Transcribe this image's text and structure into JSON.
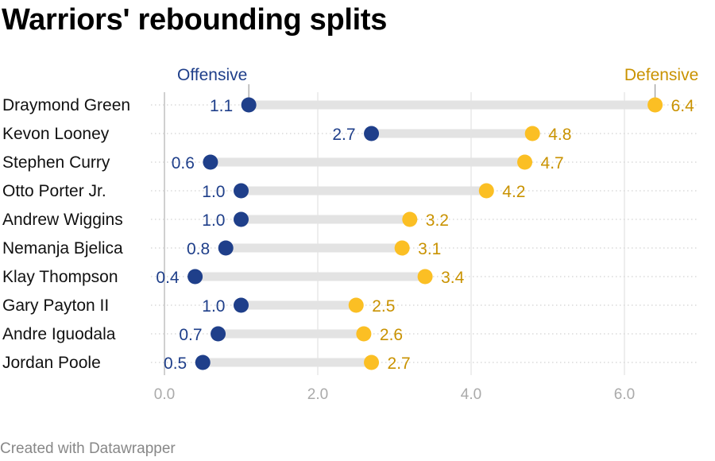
{
  "title": "Warriors' rebounding splits",
  "footer": "Created with Datawrapper",
  "colors": {
    "offensive": "#1f3f8a",
    "defensive": "#fbbf24",
    "defensive_label": "#c99200",
    "range_bar": "#e3e3e3",
    "grid": "#dcdcdc",
    "axis_tick": "#aaaaaa"
  },
  "chart_data": {
    "type": "dot-range",
    "title": "Warriors' rebounding splits",
    "xlim": [
      0,
      6.8
    ],
    "x_ticks": [
      "0.0",
      "2.0",
      "4.0",
      "6.0"
    ],
    "x_tick_values": [
      0,
      2,
      4,
      6
    ],
    "grid": true,
    "legend": [
      {
        "name": "Offensive",
        "placement": "above first offensive dot"
      },
      {
        "name": "Defensive",
        "placement": "above first defensive dot"
      }
    ],
    "categories": [
      "Draymond Green",
      "Kevon Looney",
      "Stephen Curry",
      "Otto Porter Jr.",
      "Andrew Wiggins",
      "Nemanja Bjelica",
      "Klay Thompson",
      "Gary Payton II",
      "Andre Iguodala",
      "Jordan Poole"
    ],
    "series": [
      {
        "name": "Offensive",
        "values": [
          1.1,
          2.7,
          0.6,
          1.0,
          1.0,
          0.8,
          0.4,
          1.0,
          0.7,
          0.5
        ],
        "labels": [
          "1.1",
          "2.7",
          "0.6",
          "1.0",
          "1.0",
          "0.8",
          "0.4",
          "1.0",
          "0.7",
          "0.5"
        ]
      },
      {
        "name": "Defensive",
        "values": [
          6.4,
          4.8,
          4.7,
          4.2,
          3.2,
          3.1,
          3.4,
          2.5,
          2.6,
          2.7
        ],
        "labels": [
          "6.4",
          "4.8",
          "4.7",
          "4.2",
          "3.2",
          "3.1",
          "3.4",
          "2.5",
          "2.6",
          "2.7"
        ]
      }
    ]
  }
}
